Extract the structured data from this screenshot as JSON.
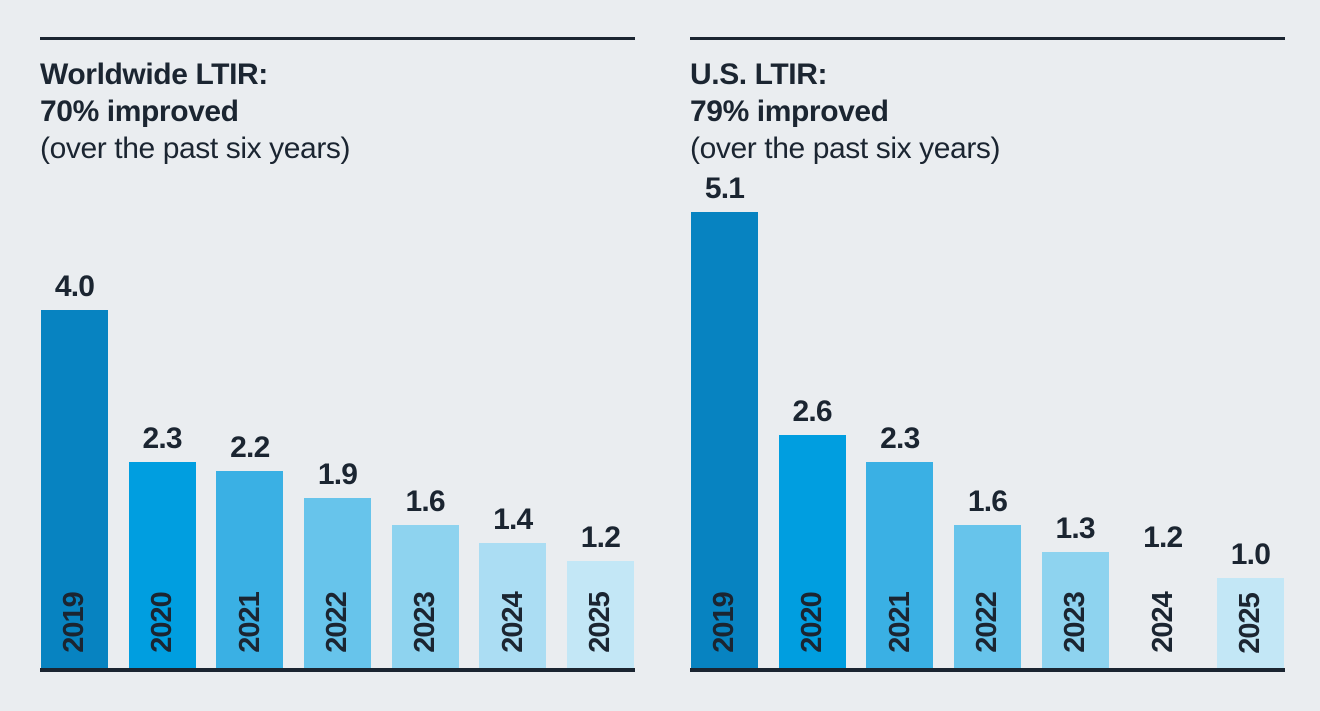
{
  "page": {
    "background": "#eaedf0",
    "ink": "#1b2531"
  },
  "chart_data": [
    {
      "type": "bar",
      "title": "Worldwide LTIR:",
      "highlight": "70% improved",
      "note": "(over the past six years)",
      "categories": [
        "2019",
        "2020",
        "2021",
        "2022",
        "2023",
        "2024",
        "2025"
      ],
      "values": [
        4.0,
        2.3,
        2.2,
        1.9,
        1.6,
        1.4,
        1.2
      ],
      "value_labels": [
        "4.0",
        "2.3",
        "2.2",
        "1.9",
        "1.6",
        "1.4",
        "1.2"
      ],
      "bar_colors": [
        "#0783c1",
        "#009ee0",
        "#3ab0e4",
        "#67c4eb",
        "#8ed3ef",
        "#abddf3",
        "#c3e7f6"
      ],
      "xlabel": "",
      "ylabel": "",
      "ylim": [
        0,
        5.4
      ],
      "grid": false,
      "legend": "none",
      "value_labels_position": "above-bars",
      "category_labels_position": "inside-bar-bottom-rotated"
    },
    {
      "type": "bar",
      "title": "U.S. LTIR:",
      "highlight": "79% improved",
      "note": "(over the past six years)",
      "categories": [
        "2019",
        "2020",
        "2021",
        "2022",
        "2023",
        "2024",
        "2025"
      ],
      "values": [
        5.1,
        2.6,
        2.3,
        1.6,
        1.3,
        1.2,
        1.0
      ],
      "value_labels": [
        "5.1",
        "2.6",
        "2.3",
        "1.6",
        "1.3",
        "1.2",
        "1.0"
      ],
      "bar_colors": [
        "#0783c1",
        "#009ee0",
        "#3ab0e4",
        "#67c4eb",
        "#8ed3ef",
        "#abdddf3",
        "#c3e7f6"
      ],
      "xlabel": "",
      "ylabel": "",
      "ylim": [
        0,
        5.4
      ],
      "grid": false,
      "legend": "none",
      "value_labels_position": "above-bars",
      "category_labels_position": "inside-bar-bottom-rotated"
    }
  ]
}
